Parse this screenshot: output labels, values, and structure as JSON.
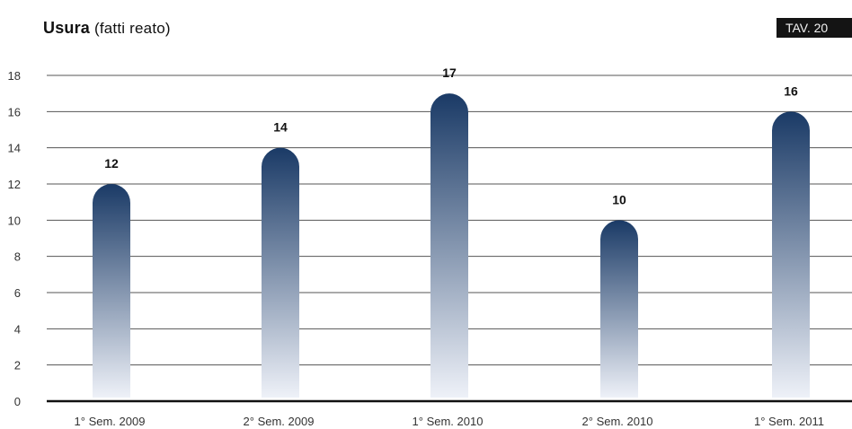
{
  "header": {
    "title_bold": "Usura",
    "title_rest": "(fatti reato)",
    "badge": "TAV. 20"
  },
  "chart_data": {
    "type": "bar",
    "title": "Usura (fatti reato)",
    "categories": [
      "1° Sem. 2009",
      "2° Sem. 2009",
      "1° Sem. 2010",
      "2° Sem. 2010",
      "1° Sem. 2011"
    ],
    "values": [
      12,
      14,
      17,
      10,
      16
    ],
    "data_labels": [
      "12",
      "14",
      "17",
      "10",
      "16"
    ],
    "yticks": [
      "0",
      "2",
      "4",
      "6",
      "8",
      "10",
      "12",
      "14",
      "16",
      "18"
    ],
    "ylim": [
      0,
      18
    ],
    "xlabel": "",
    "ylabel": "",
    "grid": true,
    "legend": "none",
    "colors": {
      "bar_top": "#1a3a66",
      "bar_bottom": "#eef1f8",
      "grid": "#555555",
      "axis": "#111111"
    }
  }
}
